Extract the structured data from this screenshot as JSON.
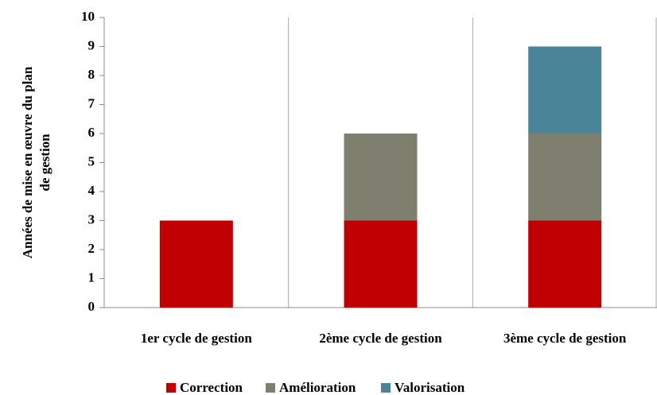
{
  "chart_data": {
    "type": "bar",
    "stacked": true,
    "ylabel": [
      "Années de mise en œuvre du plan",
      "de gestion"
    ],
    "categories": [
      "1er cycle de gestion",
      "2ème cycle de gestion",
      "3ème cycle de gestion"
    ],
    "series": [
      {
        "name": "Correction",
        "color": "#c00000",
        "values": [
          3,
          3,
          3
        ]
      },
      {
        "name": "Amélioration",
        "color": "#7f7f6f",
        "values": [
          0,
          3,
          3
        ]
      },
      {
        "name": "Valorisation",
        "color": "#4a8499",
        "values": [
          0,
          0,
          3
        ]
      }
    ],
    "ylim": [
      0,
      10
    ],
    "yticks": [
      0,
      1,
      2,
      3,
      4,
      5,
      6,
      7,
      8,
      9,
      10
    ],
    "xgrid": true,
    "legend": "bottom"
  }
}
